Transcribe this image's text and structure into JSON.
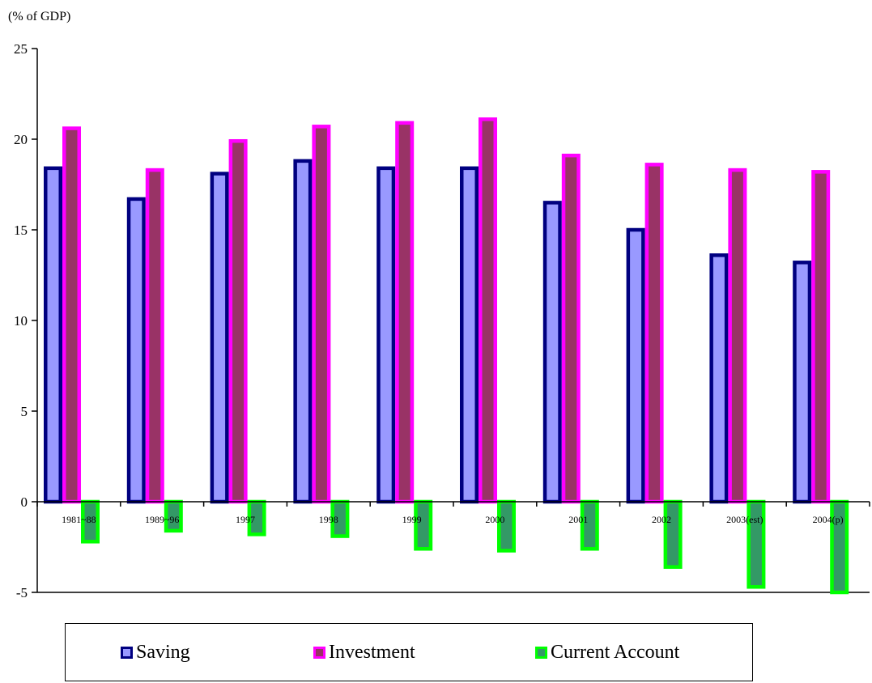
{
  "chart_data": {
    "type": "bar",
    "unit_label": "(% of GDP)",
    "categories": [
      "1981~88",
      "1989~96",
      "1997",
      "1998",
      "1999",
      "2000",
      "2001",
      "2002",
      "2003(est)",
      "2004(p)"
    ],
    "series": [
      {
        "name": "Saving",
        "values": [
          18.4,
          16.7,
          18.1,
          18.8,
          18.4,
          18.4,
          16.5,
          15.0,
          13.6,
          13.2
        ],
        "fill": "#9999ff",
        "stroke": "#000080"
      },
      {
        "name": "Investment",
        "values": [
          20.6,
          18.3,
          19.9,
          20.7,
          20.9,
          21.1,
          19.1,
          18.6,
          18.3,
          18.2
        ],
        "fill": "#993366",
        "stroke": "#ff00ff"
      },
      {
        "name": "Current Account",
        "values": [
          -2.2,
          -1.6,
          -1.8,
          -1.9,
          -2.6,
          -2.7,
          -2.6,
          -3.6,
          -4.7,
          -5.0
        ],
        "fill": "#339966",
        "stroke": "#00ff00"
      }
    ],
    "ylim": [
      -5,
      25
    ],
    "yticks": [
      25,
      20,
      15,
      10,
      5,
      0,
      -5
    ],
    "grid": false,
    "legend_position": "bottom"
  }
}
